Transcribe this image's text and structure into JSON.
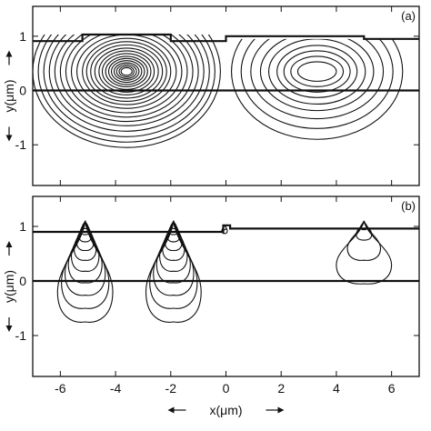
{
  "figure": {
    "background": "#ffffff",
    "ink": "#111111"
  },
  "chart_data": [
    {
      "panel": "(a)",
      "type": "contour",
      "xlabel": "x(μm)",
      "ylabel": "y(μm)",
      "xlim": [
        -7.0,
        7.0
      ],
      "ylim": [
        -1.75,
        1.55
      ],
      "xticks": [
        "-6",
        "-4",
        "-2",
        "0",
        "2",
        "4",
        "6"
      ],
      "yticks": [
        "-1",
        "0",
        "1"
      ],
      "boundaries": [
        {
          "name": "substrate interface",
          "x": [
            -7.0,
            7.0
          ],
          "y": [
            0.0,
            0.0
          ]
        },
        {
          "name": "surface profile",
          "x": [
            -7.0,
            -5.2,
            -5.2,
            -2.0,
            -2.0,
            0.0,
            0.0,
            5.0,
            5.0,
            7.0
          ],
          "y": [
            0.91,
            0.91,
            1.03,
            1.03,
            0.91,
            0.91,
            1.0,
            1.0,
            0.95,
            0.95
          ]
        }
      ],
      "contour_groups": [
        {
          "name": "left mode",
          "center": [
            -3.6,
            0.35
          ],
          "x_extents": [
            3.4,
            3.2,
            3.0,
            2.8,
            2.6,
            2.4,
            2.2,
            2.0,
            1.8,
            1.6,
            1.45,
            1.3,
            1.15,
            1.0,
            0.88,
            0.76,
            0.65,
            0.55,
            0.45,
            0.36,
            0.27,
            0.2
          ],
          "y_extents": [
            1.4,
            1.3,
            1.2,
            1.1,
            1.0,
            0.92,
            0.84,
            0.76,
            0.68,
            0.61,
            0.55,
            0.49,
            0.43,
            0.38,
            0.33,
            0.28,
            0.24,
            0.2,
            0.16,
            0.13,
            0.1,
            0.07
          ],
          "clip_top": 1.03
        },
        {
          "name": "right mode",
          "center": [
            3.3,
            0.35
          ],
          "x_extents": [
            3.1,
            2.75,
            2.4,
            2.05,
            1.75,
            1.45,
            1.2,
            0.95,
            0.7
          ],
          "y_extents": [
            1.25,
            1.05,
            0.87,
            0.72,
            0.6,
            0.48,
            0.38,
            0.28,
            0.18
          ],
          "clip_top": 0.95
        }
      ]
    },
    {
      "panel": "(b)",
      "type": "contour",
      "xlabel": "x(μm)",
      "ylabel": "y(μm)",
      "xlim": [
        -7.0,
        7.0
      ],
      "ylim": [
        -1.75,
        1.55
      ],
      "xticks": [
        "-6",
        "-4",
        "-2",
        "0",
        "2",
        "4",
        "6"
      ],
      "yticks": [
        "-1",
        "0",
        "1"
      ],
      "boundaries": [
        {
          "name": "substrate interface",
          "x": [
            -7.0,
            7.0
          ],
          "y": [
            0.0,
            0.0
          ]
        },
        {
          "name": "surface profile",
          "x": [
            -7.0,
            -0.1,
            -0.1,
            0.15,
            0.15,
            7.0
          ],
          "y": [
            0.9,
            0.9,
            1.02,
            1.02,
            0.96,
            0.96
          ]
        }
      ],
      "contour_groups": [
        {
          "name": "electrode -5.1",
          "apex": [
            -5.1,
            1.1
          ],
          "depths": [
            1.85,
            1.6,
            1.36,
            1.13,
            0.92,
            0.72,
            0.54,
            0.38,
            0.25,
            0.14
          ],
          "halfwidths": [
            1.0,
            0.86,
            0.73,
            0.61,
            0.5,
            0.4,
            0.31,
            0.23,
            0.16,
            0.1
          ]
        },
        {
          "name": "electrode -1.9",
          "apex": [
            -1.9,
            1.1
          ],
          "depths": [
            1.85,
            1.6,
            1.36,
            1.13,
            0.92,
            0.72,
            0.54,
            0.38,
            0.25,
            0.14
          ],
          "halfwidths": [
            1.0,
            0.86,
            0.73,
            0.61,
            0.5,
            0.4,
            0.31,
            0.23,
            0.16,
            0.1
          ]
        },
        {
          "name": "electrode 5.0",
          "apex": [
            5.0,
            1.1
          ],
          "depths": [
            1.15,
            0.72,
            0.35,
            0.16
          ],
          "halfwidths": [
            1.0,
            0.6,
            0.28,
            0.12
          ]
        },
        {
          "name": "gap 0",
          "apex": [
            -0.05,
            1.03
          ],
          "depths": [
            0.16,
            0.09
          ],
          "halfwidths": [
            0.1,
            0.06
          ]
        }
      ]
    }
  ]
}
